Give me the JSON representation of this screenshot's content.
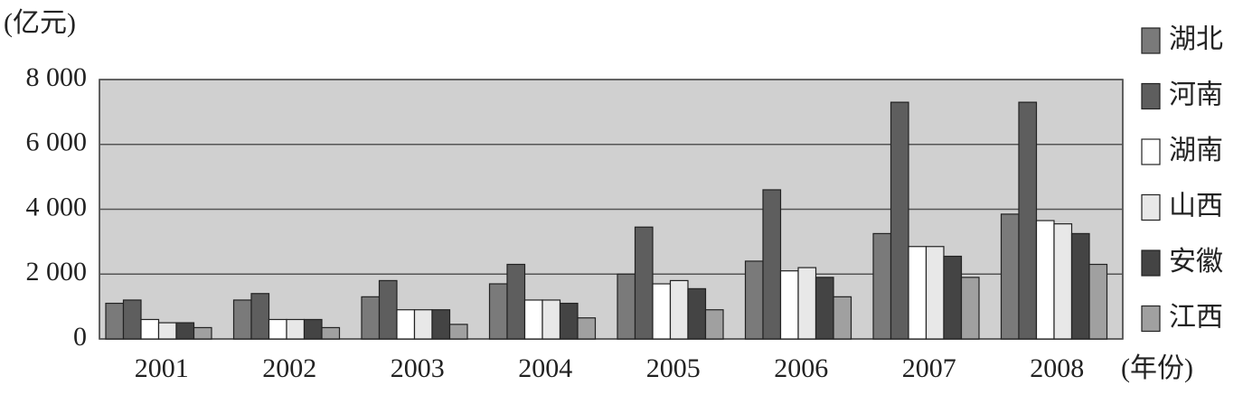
{
  "chart_data": {
    "type": "bar",
    "y_label": "(亿元)",
    "x_label": "(年份)",
    "categories": [
      "2001",
      "2002",
      "2003",
      "2004",
      "2005",
      "2006",
      "2007",
      "2008"
    ],
    "series": [
      {
        "name": "湖北",
        "color": "#7a7a7a",
        "values": [
          1100,
          1200,
          1300,
          1700,
          2000,
          2400,
          3250,
          3850
        ]
      },
      {
        "name": "河南",
        "color": "#5e5e5e",
        "values": [
          1200,
          1400,
          1800,
          2300,
          3450,
          4600,
          7300,
          7300
        ]
      },
      {
        "name": "湖南",
        "color": "#ffffff",
        "values": [
          600,
          600,
          900,
          1200,
          1700,
          2100,
          2850,
          3650
        ]
      },
      {
        "name": "山西",
        "color": "#e8e8e8",
        "values": [
          500,
          600,
          900,
          1200,
          1800,
          2200,
          2850,
          3550
        ]
      },
      {
        "name": "安徽",
        "color": "#444444",
        "values": [
          500,
          600,
          900,
          1100,
          1550,
          1900,
          2550,
          3250
        ]
      },
      {
        "name": "江西",
        "color": "#a0a0a0",
        "values": [
          350,
          350,
          450,
          650,
          900,
          1300,
          1900,
          2300
        ]
      }
    ],
    "ylim": [
      0,
      8000
    ],
    "yticks": [
      0,
      {
        "value": 2000,
        "label": "2 000"
      },
      {
        "value": 4000,
        "label": "4 000"
      },
      {
        "value": 6000,
        "label": "6 000"
      },
      {
        "value": 8000,
        "label": "8 000"
      }
    ],
    "grid": true,
    "legend": "right"
  }
}
